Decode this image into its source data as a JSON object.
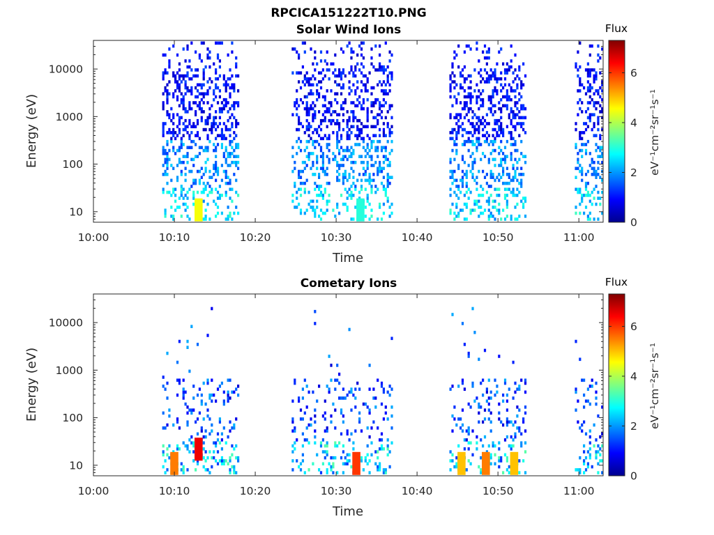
{
  "figure": {
    "suptitle": "RPCICA151222T10.PNG"
  },
  "colorbar": {
    "title": "Flux",
    "units_label": "eV⁻¹cm⁻²sr⁻¹s⁻¹",
    "range": [
      0,
      7.3
    ],
    "ticks": [
      "0",
      "2",
      "4",
      "6"
    ],
    "colormap": "jet"
  },
  "chart_data": [
    {
      "type": "heatmap",
      "title": "Solar Wind Ions",
      "xlabel": "Time",
      "ylabel": "Energy (eV)",
      "y_scale": "log",
      "xlim": [
        "10:00",
        "11:03"
      ],
      "ylim": [
        6,
        40000
      ],
      "x_tick_labels": [
        "10:00",
        "10:10",
        "10:20",
        "10:30",
        "10:40",
        "10:50",
        "11:00"
      ],
      "y_tick_labels": [
        "10",
        "100",
        "1000",
        "10000"
      ],
      "data_intervals": [
        [
          "10:08:30",
          "10:18:00"
        ],
        [
          "10:24:30",
          "10:37:00"
        ],
        [
          "10:44:00",
          "10:53:30"
        ],
        [
          "10:59:30",
          "11:03:00"
        ]
      ],
      "notable_features": [
        {
          "time": "10:13:00",
          "energy_ev": 10,
          "flux": 4.5
        },
        {
          "time": "10:33:00",
          "energy_ev": 10,
          "flux": 3.0
        }
      ]
    },
    {
      "type": "heatmap",
      "title": "Cometary Ions",
      "xlabel": "Time",
      "ylabel": "Energy (eV)",
      "y_scale": "log",
      "xlim": [
        "10:00",
        "11:03"
      ],
      "ylim": [
        6,
        40000
      ],
      "x_tick_labels": [
        "10:00",
        "10:10",
        "10:20",
        "10:30",
        "10:40",
        "10:50",
        "11:00"
      ],
      "y_tick_labels": [
        "10",
        "100",
        "1000",
        "10000"
      ],
      "data_intervals": [
        [
          "10:08:30",
          "10:18:00"
        ],
        [
          "10:24:30",
          "10:37:00"
        ],
        [
          "10:44:00",
          "10:53:30"
        ],
        [
          "10:59:30",
          "11:03:00"
        ]
      ],
      "notable_features": [
        {
          "time": "10:10:00",
          "energy_ev": 10,
          "flux": 5.5
        },
        {
          "time": "10:13:00",
          "energy_ev": 20,
          "flux": 6.5
        },
        {
          "time": "10:32:30",
          "energy_ev": 10,
          "flux": 6.0
        },
        {
          "time": "10:45:30",
          "energy_ev": 10,
          "flux": 5.0
        },
        {
          "time": "10:48:30",
          "energy_ev": 10,
          "flux": 5.5
        },
        {
          "time": "10:52:00",
          "energy_ev": 10,
          "flux": 5.0
        }
      ]
    }
  ]
}
